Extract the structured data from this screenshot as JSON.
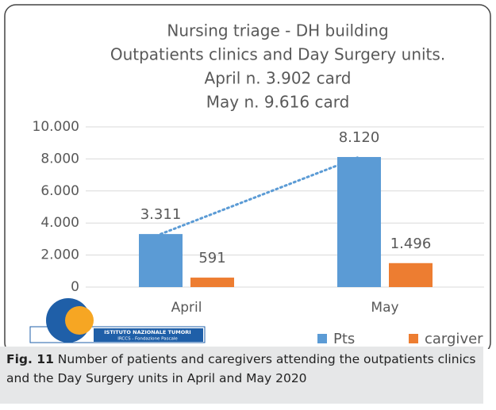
{
  "chart_data": {
    "type": "bar",
    "title": [
      "Nursing triage - DH building",
      "Outpatients clinics and Day Surgery units.",
      "April n. 3.902 card",
      "May n. 9.616 card"
    ],
    "categories": [
      "April",
      "May"
    ],
    "series": [
      {
        "name": "Pts",
        "color": "#5b9bd5",
        "values": [
          3311,
          8120
        ],
        "value_labels": [
          "3.311",
          "8.120"
        ]
      },
      {
        "name": "cargiver",
        "color": "#ed7d31",
        "values": [
          591,
          1496
        ],
        "value_labels": [
          "591",
          "1.496"
        ]
      }
    ],
    "trendline": true,
    "ylim": [
      0,
      10000
    ],
    "yticks": [
      0,
      {
        "value": 2000,
        "label": "2.000"
      },
      {
        "value": 4000,
        "label": "4.000"
      },
      {
        "value": 6000,
        "label": "6.000"
      },
      {
        "value": 8000,
        "label": "8.000"
      },
      {
        "value": 10000,
        "label": "10.000"
      }
    ],
    "grid": true,
    "legend": "bottom-right"
  },
  "logo": {
    "lines": [
      "ISTITUTO NAZIONALE TUMORI",
      "IRCCS - Fondazione Pascale"
    ]
  },
  "caption": {
    "label": "Fig. 11",
    "text": "Number of patients and caregivers attending the outpatients clinics and the Day Surgery units in April and May 2020"
  }
}
